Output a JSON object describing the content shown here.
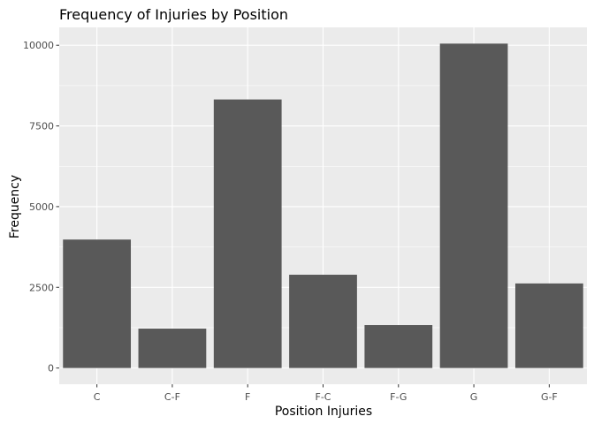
{
  "chart_data": {
    "type": "bar",
    "title": "Frequency of Injuries by Position",
    "xlabel": "Position Injuries",
    "ylabel": "Frequency",
    "categories": [
      "C",
      "C-F",
      "F",
      "F-C",
      "F-G",
      "G",
      "G-F"
    ],
    "values": [
      3980,
      1220,
      8320,
      2890,
      1330,
      10050,
      2620
    ],
    "yticks": [
      0,
      2500,
      5000,
      7500,
      10000
    ],
    "ytick_labels": [
      "0",
      "2500",
      "5000",
      "7500",
      "10000"
    ],
    "ylim": [
      -503,
      10553
    ],
    "grid": true,
    "legend": "none",
    "colors": {
      "bar": "#595959",
      "panel": "#ebebeb",
      "grid_major": "#ffffff",
      "tick_text": "#4d4d4d",
      "tick_mark": "#333333"
    }
  }
}
